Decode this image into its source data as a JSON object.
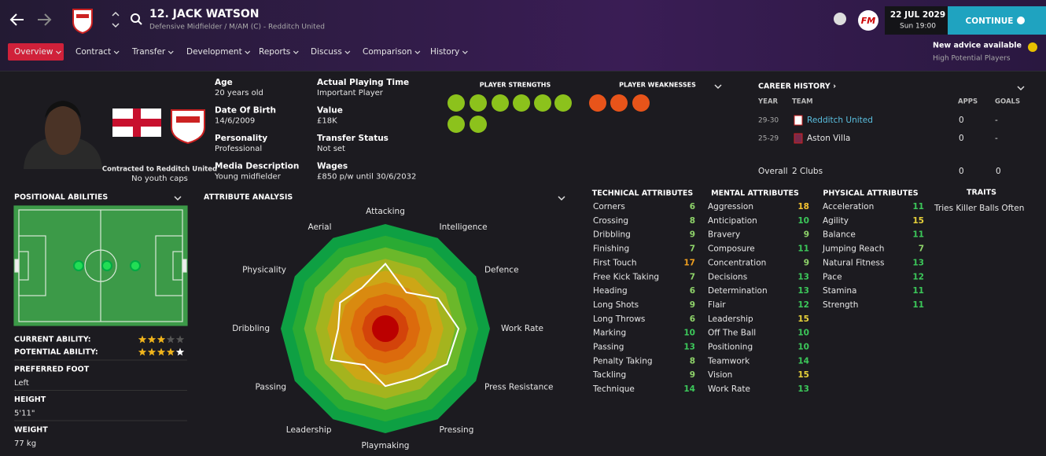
{
  "header": {
    "name": "12. JACK WATSON",
    "subtitle": "Defensive Midfielder / M/AM (C) - Redditch United",
    "date": "22 JUL 2029",
    "time": "Sun 19:00",
    "continue": "CONTINUE",
    "advice_title": "New advice available",
    "advice_text": "High Potential Players"
  },
  "nav": {
    "tabs": [
      "Overview",
      "Contract",
      "Transfer",
      "Development",
      "Reports",
      "Discuss",
      "Comparison",
      "History"
    ]
  },
  "profile": {
    "contracted": "Contracted to Redditch United",
    "caps": "No youth caps",
    "fields": [
      {
        "label": "Age",
        "value": "20 years old"
      },
      {
        "label": "Date Of Birth",
        "value": "14/6/2009"
      },
      {
        "label": "Personality",
        "value": "Professional"
      },
      {
        "label": "Media Description",
        "value": "Young midfielder"
      },
      {
        "label": "Actual Playing Time",
        "value": "Important Player"
      },
      {
        "label": "Value",
        "value": "£18K"
      },
      {
        "label": "Transfer Status",
        "value": "Not set"
      },
      {
        "label": "Wages",
        "value": "£850 p/w until 30/6/2032"
      }
    ]
  },
  "strengths": {
    "strengths_title": "PLAYER STRENGTHS",
    "weaknesses_title": "PLAYER WEAKNESSES"
  },
  "career": {
    "title": "CAREER HISTORY ›",
    "headers": [
      "YEAR",
      "TEAM",
      "APPS",
      "GOALS"
    ],
    "rows": [
      [
        "29-30",
        "Redditch United",
        "0",
        "-"
      ],
      [
        "25-29",
        "Aston Villa",
        "0",
        "-"
      ]
    ],
    "total": [
      "Overall",
      "2 Clubs",
      "0",
      "0"
    ]
  },
  "positional": {
    "title": "POSITIONAL ABILITIES",
    "current_label": "CURRENT ABILITY:",
    "current_stars": 3,
    "potential_label": "POTENTIAL ABILITY:",
    "potential_stars": 4.5,
    "details": [
      {
        "label": "PREFERRED FOOT",
        "value": "Left"
      },
      {
        "label": "HEIGHT",
        "value": "5'11\""
      },
      {
        "label": "WEIGHT",
        "value": "77 kg"
      }
    ]
  },
  "radar": {
    "title": "ATTRIBUTE ANALYSIS",
    "axes": [
      "Attacking",
      "Intelligence",
      "Defence",
      "Work Rate",
      "Press Resistance",
      "Pressing",
      "Playmaking",
      "Leadership",
      "Passing",
      "Dribbling",
      "Physicality",
      "Aerial"
    ],
    "values": [
      62,
      40,
      58,
      70,
      68,
      55,
      55,
      40,
      60,
      45,
      50,
      45
    ],
    "rlim": [
      0,
      100
    ]
  },
  "attributes": [
    {
      "title": "TECHNICAL ATTRIBUTES",
      "items": [
        [
          "Corners",
          "6"
        ],
        [
          "Crossing",
          "8"
        ],
        [
          "Dribbling",
          "9"
        ],
        [
          "Finishing",
          "7"
        ],
        [
          "First Touch",
          "17"
        ],
        [
          "Free Kick Taking",
          "7"
        ],
        [
          "Heading",
          "6"
        ],
        [
          "Long Shots",
          "9"
        ],
        [
          "Long Throws",
          "6"
        ],
        [
          "Marking",
          "10"
        ],
        [
          "Passing",
          "13"
        ],
        [
          "Penalty Taking",
          "8"
        ],
        [
          "Tackling",
          "9"
        ],
        [
          "Technique",
          "14"
        ]
      ]
    },
    {
      "title": "MENTAL ATTRIBUTES",
      "items": [
        [
          "Aggression",
          "18"
        ],
        [
          "Anticipation",
          "10"
        ],
        [
          "Bravery",
          "9"
        ],
        [
          "Composure",
          "11"
        ],
        [
          "Concentration",
          "9"
        ],
        [
          "Decisions",
          "13"
        ],
        [
          "Determination",
          "13"
        ],
        [
          "Flair",
          "12"
        ],
        [
          "Leadership",
          "15"
        ],
        [
          "Off The Ball",
          "10"
        ],
        [
          "Positioning",
          "10"
        ],
        [
          "Teamwork",
          "14"
        ],
        [
          "Vision",
          "15"
        ],
        [
          "Work Rate",
          "13"
        ]
      ]
    },
    {
      "title": "PHYSICAL ATTRIBUTES",
      "items": [
        [
          "Acceleration",
          "11"
        ],
        [
          "Agility",
          "15"
        ],
        [
          "Balance",
          "11"
        ],
        [
          "Jumping Reach",
          "7"
        ],
        [
          "Natural Fitness",
          "13"
        ],
        [
          "Pace",
          "12"
        ],
        [
          "Stamina",
          "11"
        ],
        [
          "Strength",
          "11"
        ]
      ]
    }
  ],
  "traits": {
    "title": "TRAITS",
    "items": [
      "Tries Killer Balls Often"
    ]
  }
}
